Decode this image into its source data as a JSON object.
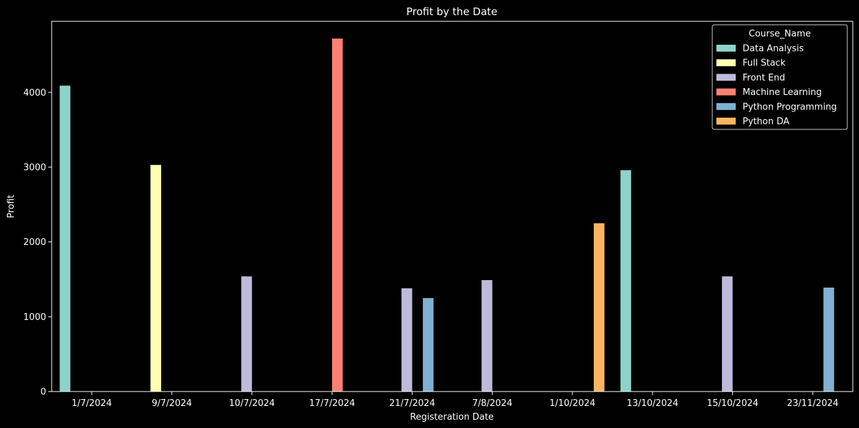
{
  "chart_data": {
    "type": "bar",
    "title": "Profit by the Date",
    "xlabel": "Registeration Date",
    "ylabel": "Profit",
    "categories": [
      "1/7/2024",
      "9/7/2024",
      "10/7/2024",
      "17/7/2024",
      "21/7/2024",
      "7/8/2024",
      "1/10/2024",
      "13/10/2024",
      "15/10/2024",
      "23/11/2024"
    ],
    "ylim": [
      0,
      4950
    ],
    "yticks": [
      0,
      1000,
      2000,
      3000,
      4000
    ],
    "grid": false,
    "legend": {
      "title": "Course_Name",
      "placement": "top-right"
    },
    "series": [
      {
        "name": "Data Analysis",
        "color": "#8dd3c7",
        "values": [
          4090,
          null,
          null,
          null,
          null,
          null,
          null,
          2960,
          null,
          null
        ]
      },
      {
        "name": "Full Stack",
        "color": "#ffffb3",
        "values": [
          null,
          3030,
          null,
          null,
          null,
          null,
          null,
          null,
          null,
          null
        ]
      },
      {
        "name": "Front End",
        "color": "#bebada",
        "values": [
          null,
          null,
          1540,
          null,
          1380,
          1490,
          null,
          null,
          1540,
          null
        ]
      },
      {
        "name": "Machine Learning",
        "color": "#fb8072",
        "values": [
          null,
          null,
          null,
          4720,
          null,
          null,
          null,
          null,
          null,
          null
        ]
      },
      {
        "name": "Python Programming",
        "color": "#80b1d3",
        "values": [
          null,
          null,
          null,
          null,
          1250,
          null,
          null,
          null,
          null,
          1390
        ]
      },
      {
        "name": "Python DA",
        "color": "#fdb462",
        "values": [
          null,
          null,
          null,
          null,
          null,
          null,
          2250,
          null,
          null,
          null
        ]
      }
    ]
  }
}
